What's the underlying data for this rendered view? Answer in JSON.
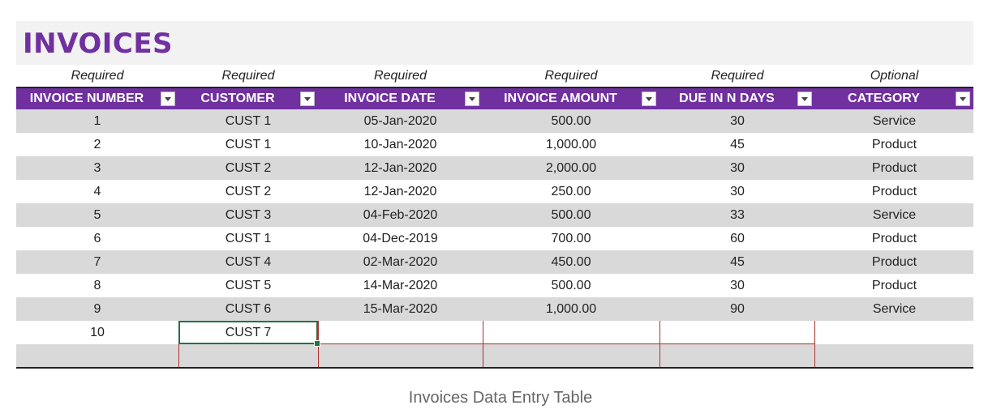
{
  "title": "INVOICES",
  "requirement_row": [
    "Required",
    "Required",
    "Required",
    "Required",
    "Required",
    "Optional"
  ],
  "columns": [
    "INVOICE NUMBER",
    "CUSTOMER",
    "INVOICE DATE",
    "INVOICE AMOUNT",
    "DUE IN N DAYS",
    "CATEGORY"
  ],
  "rows": [
    [
      "1",
      "CUST 1",
      "05-Jan-2020",
      "500.00",
      "30",
      "Service"
    ],
    [
      "2",
      "CUST 1",
      "10-Jan-2020",
      "1,000.00",
      "45",
      "Product"
    ],
    [
      "3",
      "CUST 2",
      "12-Jan-2020",
      "2,000.00",
      "30",
      "Product"
    ],
    [
      "4",
      "CUST 2",
      "12-Jan-2020",
      "250.00",
      "30",
      "Product"
    ],
    [
      "5",
      "CUST 3",
      "04-Feb-2020",
      "500.00",
      "33",
      "Service"
    ],
    [
      "6",
      "CUST 1",
      "04-Dec-2019",
      "700.00",
      "60",
      "Product"
    ],
    [
      "7",
      "CUST 4",
      "02-Mar-2020",
      "450.00",
      "45",
      "Product"
    ],
    [
      "8",
      "CUST 5",
      "14-Mar-2020",
      "500.00",
      "30",
      "Product"
    ],
    [
      "9",
      "CUST 6",
      "15-Mar-2020",
      "1,000.00",
      "90",
      "Service"
    ],
    [
      "10",
      "CUST 7",
      "",
      "",
      "",
      ""
    ],
    [
      "",
      "",
      "",
      "",
      "",
      ""
    ]
  ],
  "selected_cell": {
    "row": 10,
    "column": "CUSTOMER"
  },
  "caption": "Invoices Data Entry Table",
  "colors": {
    "header": "#7030a0",
    "title": "#7030a0",
    "band": "#d9d9d9",
    "error_border": "#b32d2d",
    "selection": "#217346"
  },
  "icons": {
    "filter_dropdown": "chevron-down-icon"
  }
}
